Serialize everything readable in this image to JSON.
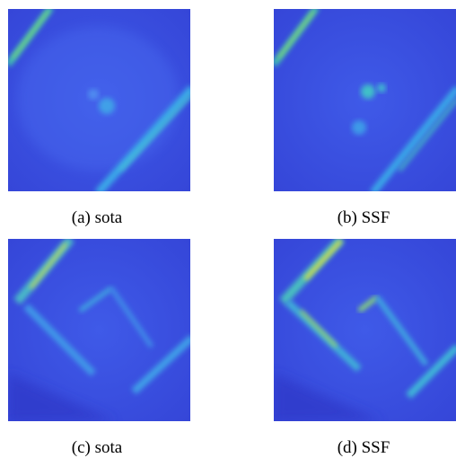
{
  "panels": [
    {
      "caption": "(a) sota"
    },
    {
      "caption": "(b) SSF"
    },
    {
      "caption": "(c) sota"
    },
    {
      "caption": "(d) SSF"
    }
  ]
}
